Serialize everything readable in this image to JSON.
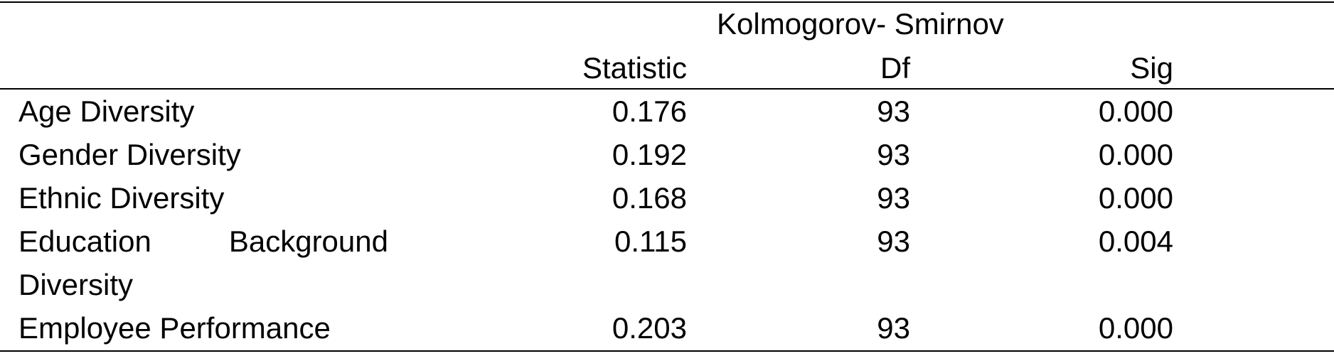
{
  "table": {
    "group_header": "Kolmogorov- Smirnov",
    "columns": [
      "Statistic",
      "Df",
      "Sig"
    ],
    "rows": [
      {
        "label": "Age Diversity",
        "statistic": "0.176",
        "df": "93",
        "sig": "0.000"
      },
      {
        "label": "Gender Diversity",
        "statistic": "0.192",
        "df": "93",
        "sig": "0.000"
      },
      {
        "label": "Ethnic Diversity",
        "statistic": "0.168",
        "df": "93",
        "sig": "0.000"
      },
      {
        "label_line1_word1": "Education",
        "label_line1_word2": "Background",
        "label_line2": "Diversity",
        "statistic": "0.115",
        "df": "93",
        "sig": "0.004"
      },
      {
        "label": "Employee Performance",
        "statistic": "0.203",
        "df": "93",
        "sig": "0.000"
      }
    ]
  }
}
